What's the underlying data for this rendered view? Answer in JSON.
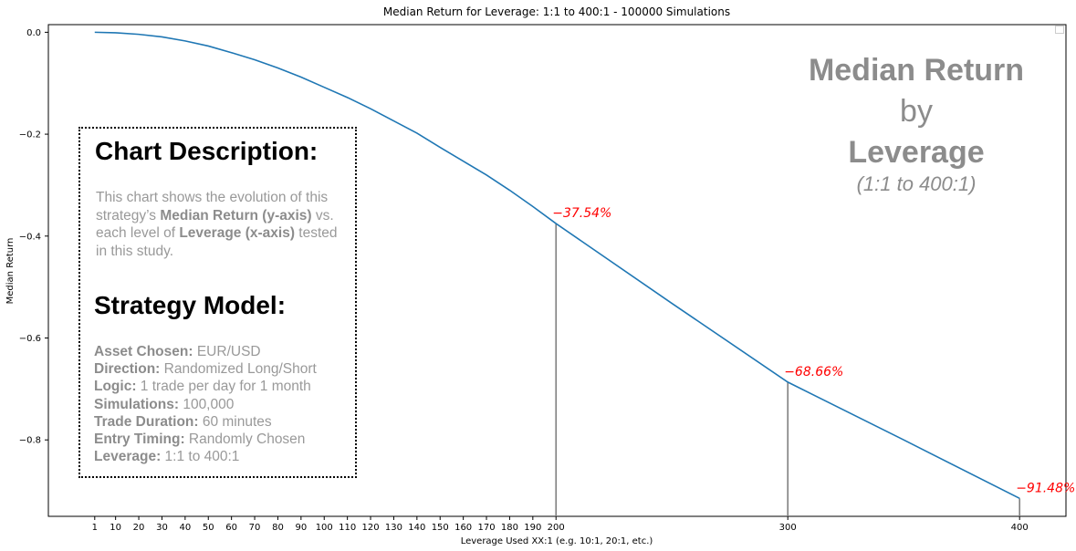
{
  "chart_data": {
    "type": "line",
    "title": "Median Return for Leverage: 1:1 to 400:1 - 100000 Simulations",
    "xlabel": "Leverage Used XX:1 (e.g. 10:1, 20:1, etc.)",
    "ylabel": "Median Return",
    "xlim": [
      -19,
      420
    ],
    "ylim": [
      -0.95,
      0.015
    ],
    "x_ticks": [
      1,
      10,
      20,
      30,
      40,
      50,
      60,
      70,
      80,
      90,
      100,
      110,
      120,
      130,
      140,
      150,
      160,
      170,
      180,
      190,
      200,
      300,
      400
    ],
    "y_ticks": [
      0.0,
      -0.2,
      -0.4,
      -0.6,
      -0.8
    ],
    "y_tick_labels": [
      "0.0",
      "−0.2",
      "−0.4",
      "−0.6",
      "−0.8"
    ],
    "line_color": "#1f77b4",
    "series": [
      {
        "x": [
          1,
          10,
          20,
          30,
          40,
          50,
          60,
          70,
          80,
          90,
          100,
          110,
          120,
          130,
          140,
          150,
          160,
          170,
          180,
          190,
          200,
          250,
          300,
          350,
          400
        ],
        "values": [
          0.0,
          -0.001,
          -0.004,
          -0.009,
          -0.017,
          -0.027,
          -0.04,
          -0.054,
          -0.07,
          -0.088,
          -0.108,
          -0.128,
          -0.15,
          -0.174,
          -0.198,
          -0.226,
          -0.253,
          -0.28,
          -0.31,
          -0.342,
          -0.3754,
          -0.532,
          -0.6866,
          -0.8,
          -0.9148
        ]
      }
    ],
    "annotations": [
      {
        "x": 200,
        "y": -0.3754,
        "label": "−37.54%"
      },
      {
        "x": 300,
        "y": -0.6866,
        "label": "−68.66%"
      },
      {
        "x": 400,
        "y": -0.9148,
        "label": "−91.48%"
      }
    ],
    "annotation_color": "#ff0000",
    "vline_color": "#808080",
    "grid": false,
    "legend": "top-right"
  },
  "overlay": {
    "title_line1": "Median Return",
    "title_line2": "by",
    "title_line3": "Leverage",
    "title_sub": "(1:1 to 400:1)",
    "color": "#8c8c8c"
  },
  "description": {
    "heading": "Chart Description:",
    "text_pre": "This chart shows the evolution of this strategy’s ",
    "bold1": "Median Return (y-axis)",
    "text_mid": " vs. each level of ",
    "bold2": "Leverage (x-axis)",
    "text_post": " tested in this study."
  },
  "model": {
    "heading": "Strategy Model:",
    "items": [
      {
        "label": "Asset Chosen:",
        "value": " EUR/USD"
      },
      {
        "label": "Direction:",
        "value": " Randomized Long/Short"
      },
      {
        "label": "Logic:",
        "value": " 1 trade per day for 1 month"
      },
      {
        "label": "Simulations:",
        "value": " 100,000"
      },
      {
        "label": "Trade Duration:",
        "value": " 60 minutes"
      },
      {
        "label": "Entry Timing:",
        "value": " Randomly Chosen"
      },
      {
        "label": "Leverage:",
        "value": " 1:1 to 400:1"
      }
    ]
  }
}
